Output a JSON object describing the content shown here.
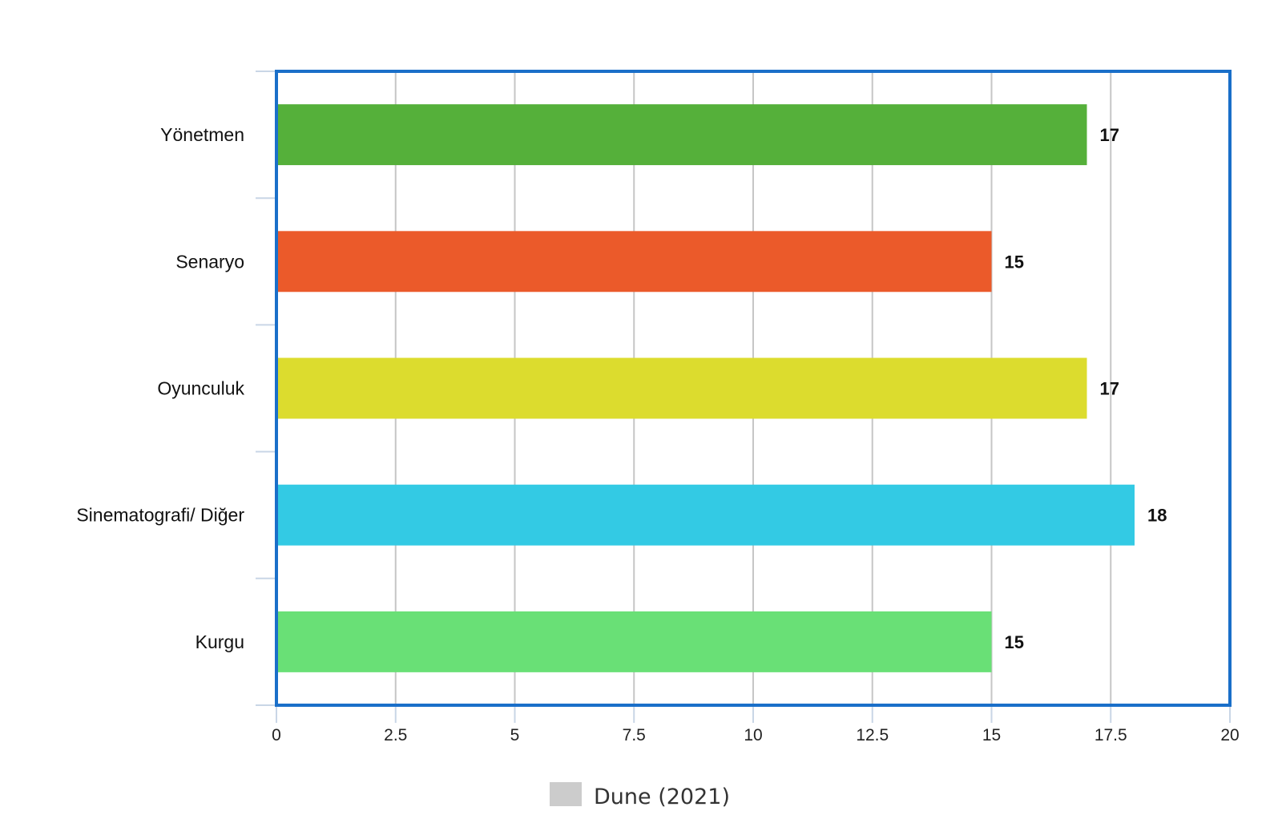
{
  "chart_data": {
    "type": "bar",
    "orientation": "horizontal",
    "categories": [
      "Yönetmen",
      "Senaryo",
      "Oyunculuk",
      "Sinematografi/ Diğer",
      "Kurgu"
    ],
    "series": [
      {
        "name": "Dune (2021)",
        "values": [
          17,
          15,
          17,
          18,
          15
        ],
        "colors": [
          "#55b03a",
          "#eb5a2a",
          "#dcdc2e",
          "#33cae4",
          "#69e076"
        ]
      }
    ],
    "data_labels": [
      "17",
      "15",
      "17",
      "18",
      "15"
    ],
    "xlim": [
      0,
      20
    ],
    "xticks": [
      0,
      2.5,
      5,
      7.5,
      10,
      12.5,
      15,
      17.5,
      20
    ],
    "xtick_labels": [
      "0",
      "2.5",
      "5",
      "7.5",
      "10",
      "12.5",
      "15",
      "17.5",
      "20"
    ],
    "grid": "vertical",
    "legend": {
      "position": "bottom",
      "label": "Dune (2021)",
      "swatch_color": "#cccccc"
    },
    "frame_color": "#1a6fc9",
    "grid_color": "#c6c6c6"
  }
}
